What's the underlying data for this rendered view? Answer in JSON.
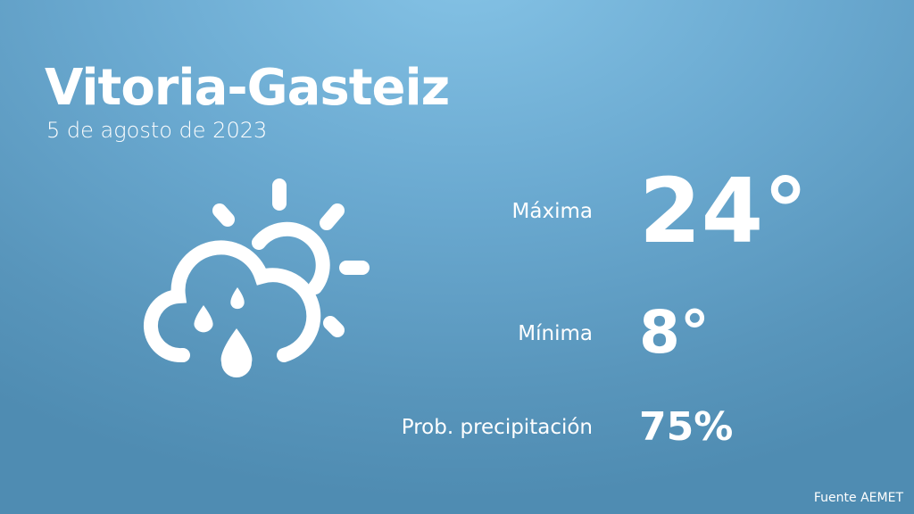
{
  "city": "Vitoria-Gasteiz",
  "date": "5 de agosto de 2023",
  "icon": "sun-cloud-rain-icon",
  "max": {
    "label": "Máxima",
    "value": "24°"
  },
  "min": {
    "label": "Mínima",
    "value": "8°"
  },
  "precip": {
    "label": "Prob. precipitación",
    "value": "75%"
  },
  "source": "Fuente AEMET"
}
